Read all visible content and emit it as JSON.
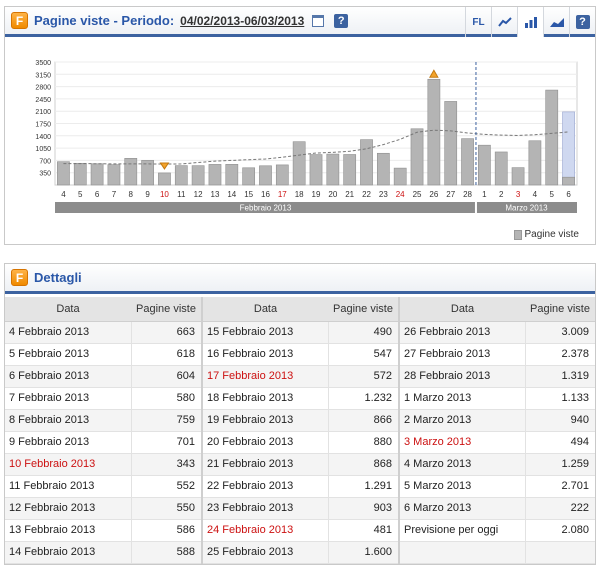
{
  "top_panel": {
    "title": "Pagine viste - Periodo:",
    "dates": "04/02/2013-06/03/2013",
    "toolbar": [
      "FL"
    ],
    "legend": "Pagine viste"
  },
  "chart_data": {
    "type": "bar",
    "yticks": [
      350,
      700,
      1050,
      1400,
      1750,
      2100,
      2450,
      2800,
      3150,
      3500
    ],
    "ylim": [
      0,
      3500
    ],
    "categories": [
      "4",
      "5",
      "6",
      "7",
      "8",
      "9",
      "10",
      "11",
      "12",
      "13",
      "14",
      "15",
      "16",
      "17",
      "18",
      "19",
      "20",
      "21",
      "22",
      "23",
      "24",
      "25",
      "26",
      "27",
      "28",
      "1",
      "2",
      "3",
      "4",
      "5",
      "6"
    ],
    "red_categories_idx": [
      6,
      13,
      20,
      27
    ],
    "values": [
      663,
      618,
      604,
      580,
      759,
      701,
      343,
      552,
      550,
      586,
      588,
      490,
      547,
      572,
      1232,
      866,
      880,
      868,
      1291,
      903,
      481,
      1600,
      3009,
      2378,
      1319,
      1133,
      940,
      494,
      1259,
      2701,
      222
    ],
    "forecast": 2080,
    "trend": [
      610,
      610,
      605,
      600,
      600,
      600,
      595,
      600,
      640,
      680,
      700,
      720,
      740,
      790,
      850,
      910,
      930,
      960,
      1030,
      1150,
      1300,
      1500,
      1560,
      1540,
      1480,
      1440,
      1420,
      1410,
      1430,
      1470,
      1510
    ],
    "months": [
      "Febbraio 2013",
      "Marzo 2013"
    ],
    "markers": {
      "min_index": 6,
      "max_index": 22
    }
  },
  "details": {
    "title": "Dettagli",
    "col_data": "Data",
    "col_views": "Pagine viste",
    "rows": [
      [
        {
          "d": "4 Febbraio 2013",
          "v": "663"
        },
        {
          "d": "15 Febbraio 2013",
          "v": "490"
        },
        {
          "d": "26 Febbraio 2013",
          "v": "3.009"
        }
      ],
      [
        {
          "d": "5 Febbraio 2013",
          "v": "618"
        },
        {
          "d": "16 Febbraio 2013",
          "v": "547"
        },
        {
          "d": "27 Febbraio 2013",
          "v": "2.378"
        }
      ],
      [
        {
          "d": "6 Febbraio 2013",
          "v": "604"
        },
        {
          "d": "17 Febbraio 2013",
          "v": "572",
          "red": true
        },
        {
          "d": "28 Febbraio 2013",
          "v": "1.319"
        }
      ],
      [
        {
          "d": "7 Febbraio 2013",
          "v": "580"
        },
        {
          "d": "18 Febbraio 2013",
          "v": "1.232"
        },
        {
          "d": "1 Marzo 2013",
          "v": "1.133"
        }
      ],
      [
        {
          "d": "8 Febbraio 2013",
          "v": "759"
        },
        {
          "d": "19 Febbraio 2013",
          "v": "866"
        },
        {
          "d": "2 Marzo 2013",
          "v": "940"
        }
      ],
      [
        {
          "d": "9 Febbraio 2013",
          "v": "701"
        },
        {
          "d": "20 Febbraio 2013",
          "v": "880"
        },
        {
          "d": "3 Marzo 2013",
          "v": "494",
          "red": true
        }
      ],
      [
        {
          "d": "10 Febbraio 2013",
          "v": "343",
          "red": true
        },
        {
          "d": "21 Febbraio 2013",
          "v": "868"
        },
        {
          "d": "4 Marzo 2013",
          "v": "1.259"
        }
      ],
      [
        {
          "d": "11 Febbraio 2013",
          "v": "552"
        },
        {
          "d": "22 Febbraio 2013",
          "v": "1.291"
        },
        {
          "d": "5 Marzo 2013",
          "v": "2.701"
        }
      ],
      [
        {
          "d": "12 Febbraio 2013",
          "v": "550"
        },
        {
          "d": "23 Febbraio 2013",
          "v": "903"
        },
        {
          "d": "6 Marzo 2013",
          "v": "222"
        }
      ],
      [
        {
          "d": "13 Febbraio 2013",
          "v": "586"
        },
        {
          "d": "24 Febbraio 2013",
          "v": "481",
          "red": true
        },
        {
          "d": "Previsione per oggi",
          "v": "2.080"
        }
      ],
      [
        {
          "d": "14 Febbraio 2013",
          "v": "588"
        },
        {
          "d": "25 Febbraio 2013",
          "v": "1.600"
        },
        {
          "d": "",
          "v": ""
        }
      ]
    ]
  }
}
